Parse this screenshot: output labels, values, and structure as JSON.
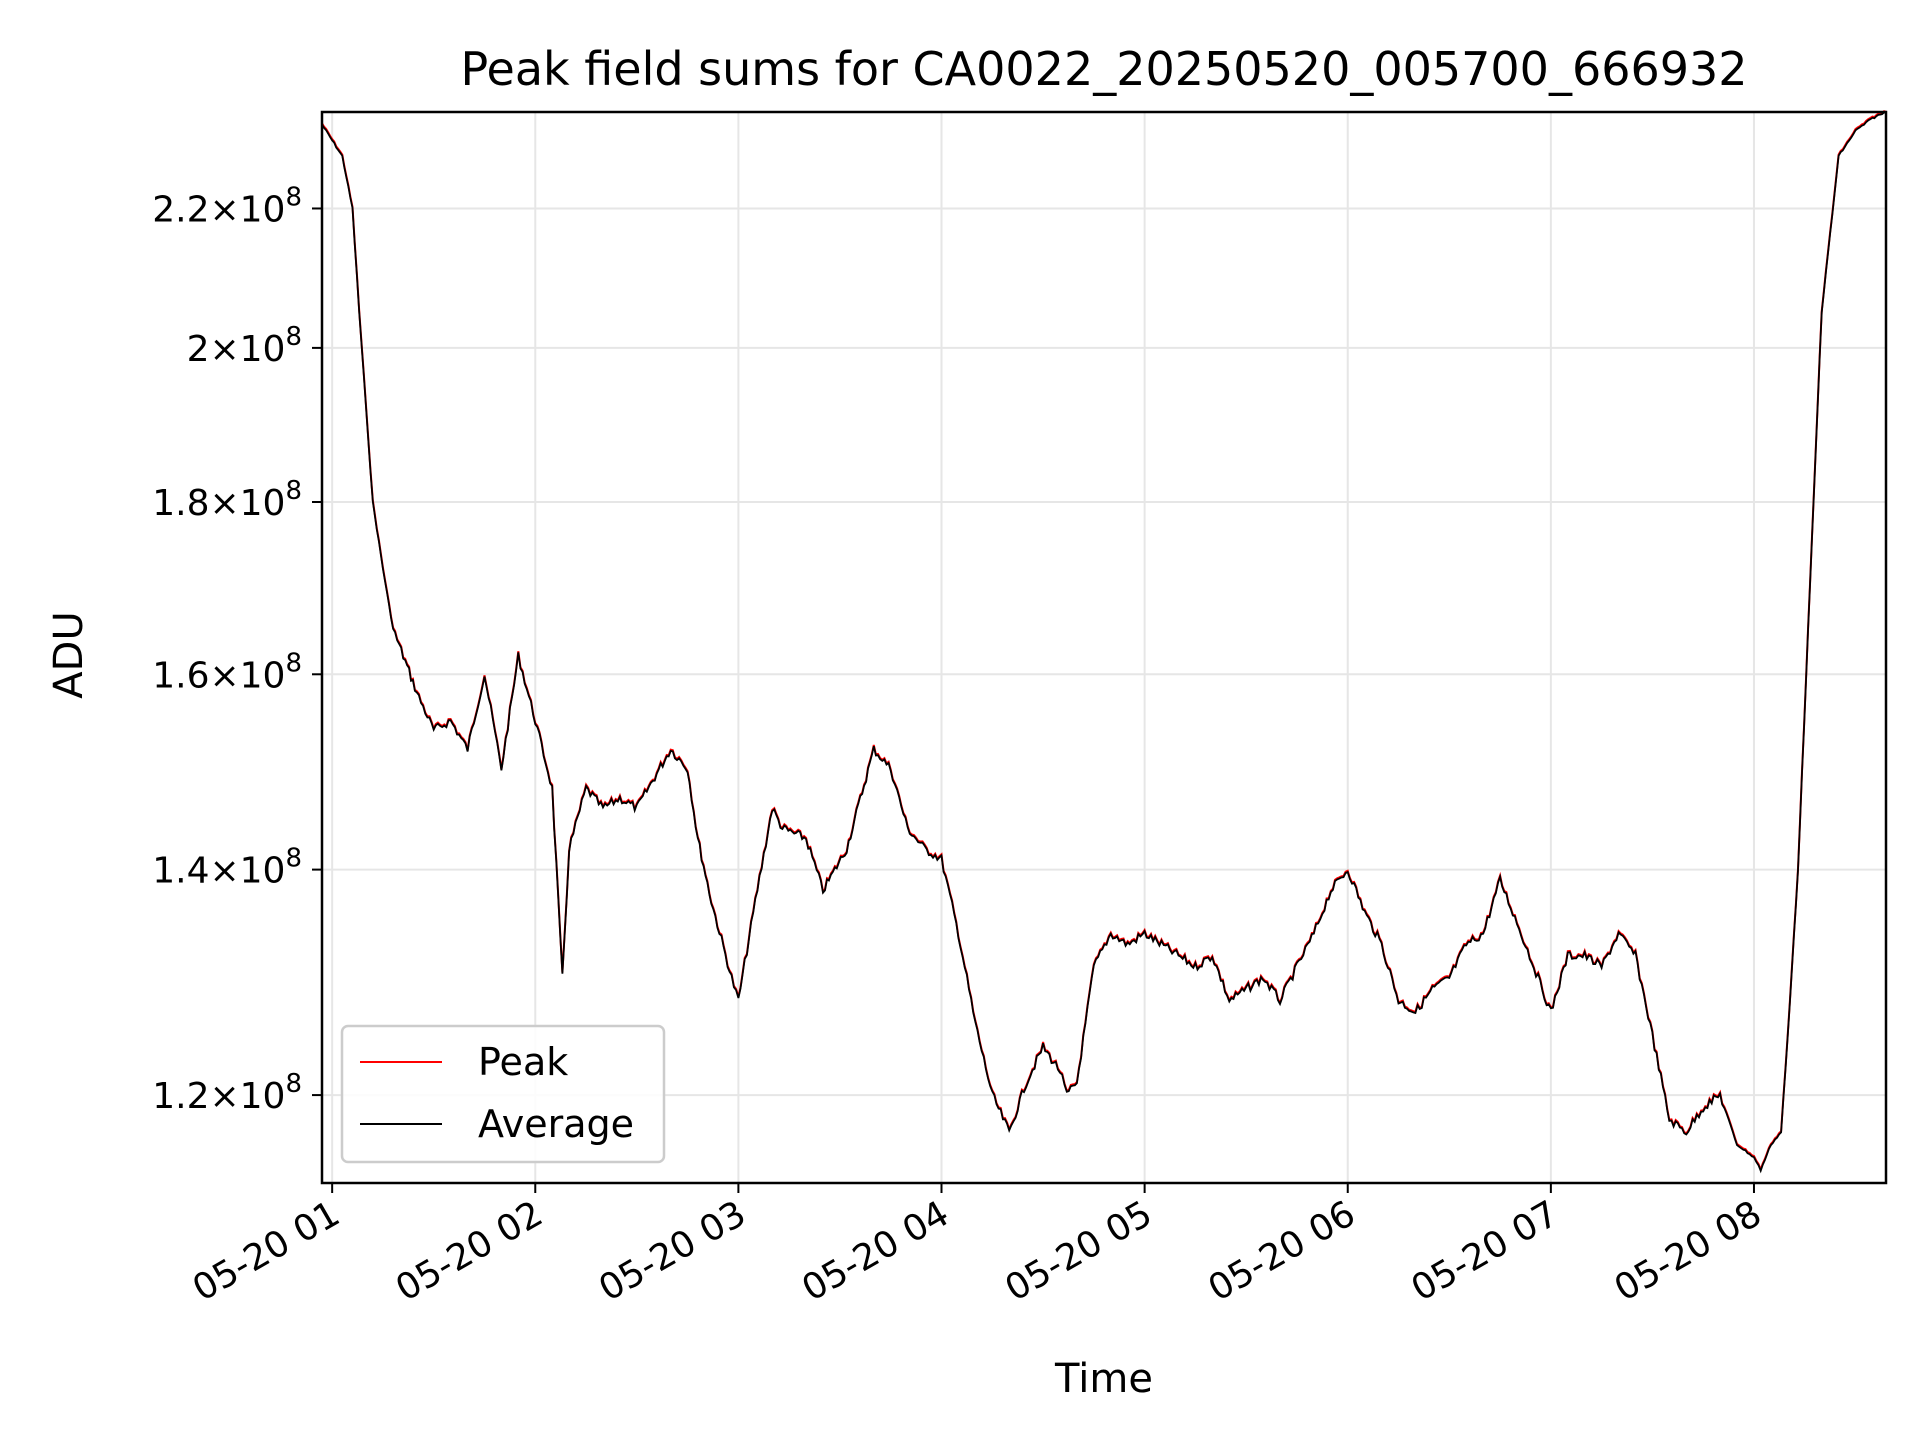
{
  "chart_data": {
    "type": "line",
    "title": "Peak field sums for CA0022_20250520_005700_666932",
    "xlabel": "Time",
    "ylabel": "ADU",
    "yscale": "log",
    "grid": true,
    "legend_position": "lower-left",
    "xlim": [
      "2025-05-20 00:57",
      "2025-05-20 08:39"
    ],
    "ylim": [
      113000000,
      235000000
    ],
    "x_ticks": [
      {
        "value": "2025-05-20 01:00",
        "label": "05-20 01"
      },
      {
        "value": "2025-05-20 02:00",
        "label": "05-20 02"
      },
      {
        "value": "2025-05-20 03:00",
        "label": "05-20 03"
      },
      {
        "value": "2025-05-20 04:00",
        "label": "05-20 04"
      },
      {
        "value": "2025-05-20 05:00",
        "label": "05-20 05"
      },
      {
        "value": "2025-05-20 06:00",
        "label": "05-20 06"
      },
      {
        "value": "2025-05-20 07:00",
        "label": "05-20 07"
      },
      {
        "value": "2025-05-20 08:00",
        "label": "05-20 08"
      }
    ],
    "y_ticks": [
      {
        "value": 120000000,
        "mantissa": "1.2",
        "exponent": "8"
      },
      {
        "value": 140000000,
        "mantissa": "1.4",
        "exponent": "8"
      },
      {
        "value": 160000000,
        "mantissa": "1.6",
        "exponent": "8"
      },
      {
        "value": 180000000,
        "mantissa": "1.8",
        "exponent": "8"
      },
      {
        "value": 200000000,
        "mantissa": "2",
        "exponent": "8"
      },
      {
        "value": 220000000,
        "mantissa": "2.2",
        "exponent": "8"
      }
    ],
    "times_and_baseline": {
      "x": [
        "2025-05-20 00:57",
        "2025-05-20 01:03",
        "2025-05-20 01:06",
        "2025-05-20 01:08",
        "2025-05-20 01:10",
        "2025-05-20 01:12",
        "2025-05-20 01:15",
        "2025-05-20 01:18",
        "2025-05-20 01:21",
        "2025-05-20 01:25",
        "2025-05-20 01:30",
        "2025-05-20 01:35",
        "2025-05-20 01:40",
        "2025-05-20 01:45",
        "2025-05-20 01:50",
        "2025-05-20 01:55",
        "2025-05-20 02:00",
        "2025-05-20 02:05",
        "2025-05-20 02:08",
        "2025-05-20 02:10",
        "2025-05-20 02:15",
        "2025-05-20 02:20",
        "2025-05-20 02:25",
        "2025-05-20 02:30",
        "2025-05-20 02:40",
        "2025-05-20 02:45",
        "2025-05-20 02:48",
        "2025-05-20 02:52",
        "2025-05-20 02:58",
        "2025-05-20 03:00",
        "2025-05-20 03:05",
        "2025-05-20 03:10",
        "2025-05-20 03:13",
        "2025-05-20 03:20",
        "2025-05-20 03:25",
        "2025-05-20 03:32",
        "2025-05-20 03:40",
        "2025-05-20 03:45",
        "2025-05-20 03:50",
        "2025-05-20 03:55",
        "2025-05-20 04:00",
        "2025-05-20 04:05",
        "2025-05-20 04:10",
        "2025-05-20 04:15",
        "2025-05-20 04:20",
        "2025-05-20 04:25",
        "2025-05-20 04:30",
        "2025-05-20 04:35",
        "2025-05-20 04:37",
        "2025-05-20 04:40",
        "2025-05-20 04:45",
        "2025-05-20 04:50",
        "2025-05-20 04:55",
        "2025-05-20 05:00",
        "2025-05-20 05:05",
        "2025-05-20 05:10",
        "2025-05-20 05:15",
        "2025-05-20 05:20",
        "2025-05-20 05:25",
        "2025-05-20 05:30",
        "2025-05-20 05:35",
        "2025-05-20 05:40",
        "2025-05-20 05:45",
        "2025-05-20 05:50",
        "2025-05-20 05:55",
        "2025-05-20 06:00",
        "2025-05-20 06:05",
        "2025-05-20 06:10",
        "2025-05-20 06:15",
        "2025-05-20 06:20",
        "2025-05-20 06:25",
        "2025-05-20 06:30",
        "2025-05-20 06:35",
        "2025-05-20 06:40",
        "2025-05-20 06:45",
        "2025-05-20 06:50",
        "2025-05-20 06:55",
        "2025-05-20 07:00",
        "2025-05-20 07:05",
        "2025-05-20 07:10",
        "2025-05-20 07:15",
        "2025-05-20 07:20",
        "2025-05-20 07:25",
        "2025-05-20 07:30",
        "2025-05-20 07:35",
        "2025-05-20 07:40",
        "2025-05-20 07:45",
        "2025-05-20 07:50",
        "2025-05-20 07:55",
        "2025-05-20 08:00",
        "2025-05-20 08:02",
        "2025-05-20 08:05",
        "2025-05-20 08:08",
        "2025-05-20 08:10",
        "2025-05-20 08:13",
        "2025-05-20 08:16",
        "2025-05-20 08:20",
        "2025-05-20 08:25",
        "2025-05-20 08:30",
        "2025-05-20 08:35",
        "2025-05-20 08:39"
      ],
      "y": [
        233000000,
        228000000,
        220000000,
        205000000,
        192000000,
        180000000,
        172000000,
        165000000,
        162000000,
        158000000,
        154000000,
        155000000,
        152000000,
        160000000,
        150000000,
        162000000,
        155000000,
        148000000,
        130000000,
        142000000,
        148000000,
        146000000,
        147000000,
        146000000,
        152000000,
        150000000,
        143000000,
        137000000,
        130000000,
        128000000,
        137000000,
        146000000,
        144000000,
        143000000,
        138000000,
        142000000,
        152000000,
        150000000,
        144000000,
        142000000,
        141000000,
        134000000,
        126000000,
        120000000,
        117000000,
        121000000,
        124000000,
        122000000,
        120000000,
        121000000,
        131000000,
        134000000,
        133000000,
        134000000,
        133000000,
        132000000,
        131000000,
        132000000,
        128000000,
        129000000,
        130000000,
        128000000,
        131000000,
        134000000,
        138000000,
        140000000,
        136000000,
        133000000,
        128000000,
        127000000,
        129000000,
        130000000,
        133000000,
        134000000,
        139000000,
        135000000,
        131000000,
        127000000,
        132000000,
        132000000,
        131000000,
        134000000,
        132000000,
        125000000,
        118000000,
        117000000,
        119000000,
        120000000,
        116000000,
        115000000,
        114000000,
        116000000,
        117000000,
        125000000,
        140000000,
        165000000,
        205000000,
        228000000,
        232000000,
        234000000,
        235000000
      ]
    },
    "series": [
      {
        "name": "Peak",
        "color": "#ff0000"
      },
      {
        "name": "Average",
        "color": "#000000"
      }
    ]
  }
}
